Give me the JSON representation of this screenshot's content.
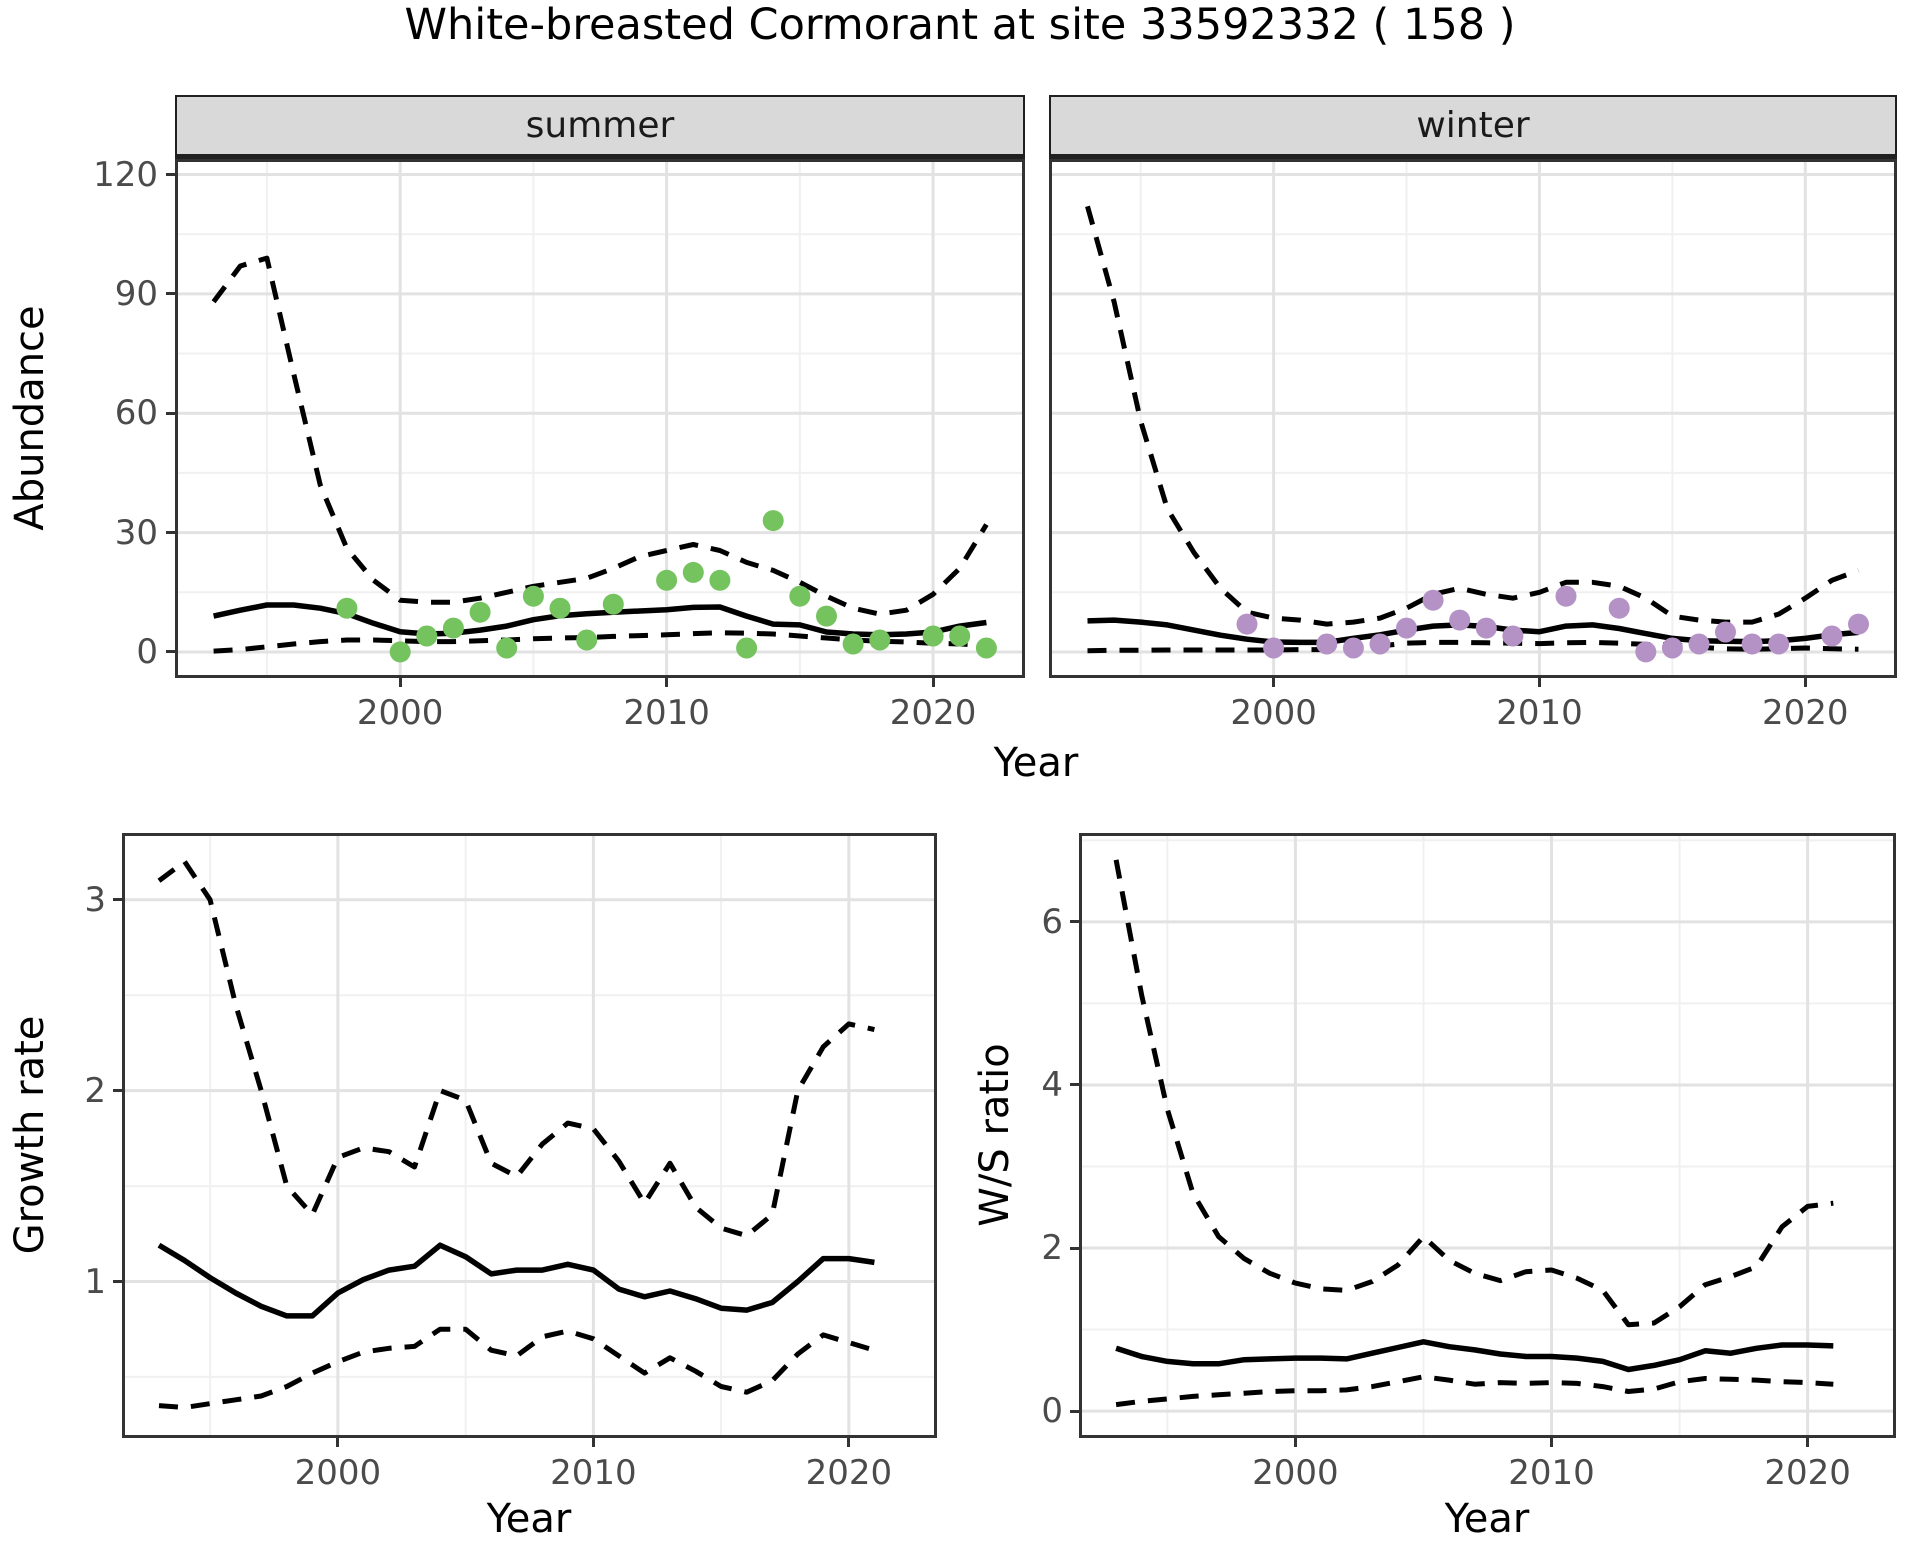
{
  "title": "White-breasted Cormorant at site 33592332 ( 158 )",
  "labels": {
    "abundance_axis": "Abundance",
    "growth_axis": "Growth rate",
    "ws_axis": "W/S ratio",
    "year_axis": "Year",
    "facet_summer": "summer",
    "facet_winter": "winter"
  },
  "colors": {
    "summer_point": "#74c35e",
    "winter_point": "#b592c6",
    "line": "#000000",
    "strip_bg": "#d9d9d9",
    "panel_border": "#333333",
    "grid_major": "#e2e2e2",
    "grid_minor": "#f0f0f0",
    "tick_text": "#4b4b4b"
  },
  "chart_data": [
    {
      "id": "abundance_summer",
      "type": "line",
      "facet": "summer",
      "xlabel": "Year",
      "ylabel": "Abundance",
      "x_range": [
        1991.55,
        2023.45
      ],
      "y_range": [
        -6.55,
        123.9
      ],
      "x_ticks": [
        2000,
        2010,
        2020
      ],
      "x_minor": [
        1995,
        2005,
        2015
      ],
      "y_ticks": [
        0,
        30,
        60,
        90,
        120
      ],
      "y_minor": [
        15,
        45,
        75,
        105
      ],
      "years": [
        1993,
        1994,
        1995,
        1996,
        1997,
        1998,
        1999,
        2000,
        2001,
        2002,
        2003,
        2004,
        2005,
        2006,
        2007,
        2008,
        2009,
        2010,
        2011,
        2012,
        2013,
        2014,
        2015,
        2016,
        2017,
        2018,
        2019,
        2020,
        2021,
        2022
      ],
      "series": [
        {
          "name": "mean",
          "style": "solid",
          "values": [
            9,
            10.5,
            11.8,
            11.8,
            11,
            9.6,
            7.2,
            5.1,
            4.5,
            4.7,
            5.5,
            6.5,
            8.1,
            9.1,
            9.6,
            10,
            10.3,
            10.6,
            11.2,
            11.3,
            9,
            7,
            6.8,
            5,
            4.5,
            4.3,
            4.5,
            5,
            6.5,
            7.4
          ]
        },
        {
          "name": "lower_ci",
          "style": "dashed",
          "values": [
            0.2,
            0.6,
            1.3,
            2,
            2.6,
            3,
            3,
            2.8,
            2.6,
            2.6,
            2.8,
            3,
            3.3,
            3.5,
            3.6,
            3.9,
            4.1,
            4.3,
            4.6,
            4.8,
            4.7,
            4.5,
            4,
            3.5,
            3,
            2.7,
            2.5,
            2.2,
            2,
            1.7
          ]
        },
        {
          "name": "upper_ci",
          "style": "dashed",
          "values": [
            88,
            97,
            99,
            70,
            42,
            26,
            18,
            13,
            12.5,
            12.5,
            13.5,
            15,
            16.5,
            17.5,
            18.5,
            21,
            24,
            25.5,
            27,
            25.5,
            22.5,
            20.5,
            17.5,
            14,
            11,
            9.5,
            10.5,
            14.5,
            21,
            32
          ]
        }
      ],
      "points": {
        "color_key": "summer_point",
        "data": [
          [
            1998,
            11
          ],
          [
            2000,
            0
          ],
          [
            2001,
            4
          ],
          [
            2002,
            6
          ],
          [
            2003,
            10
          ],
          [
            2004,
            1
          ],
          [
            2005,
            14
          ],
          [
            2006,
            11
          ],
          [
            2007,
            3
          ],
          [
            2008,
            12
          ],
          [
            2010,
            18
          ],
          [
            2011,
            20
          ],
          [
            2012,
            18
          ],
          [
            2013,
            1
          ],
          [
            2014,
            33
          ],
          [
            2015,
            14
          ],
          [
            2016,
            9
          ],
          [
            2017,
            2
          ],
          [
            2018,
            3
          ],
          [
            2020,
            4
          ],
          [
            2021,
            4
          ],
          [
            2022,
            1
          ]
        ]
      }
    },
    {
      "id": "abundance_winter",
      "type": "line",
      "facet": "winter",
      "xlabel": "Year",
      "ylabel": "Abundance",
      "x_range": [
        1991.55,
        2023.45
      ],
      "y_range": [
        -6.55,
        123.9
      ],
      "x_ticks": [
        2000,
        2010,
        2020
      ],
      "x_minor": [
        1995,
        2005,
        2015
      ],
      "y_ticks": [
        0,
        30,
        60,
        90,
        120
      ],
      "y_minor": [
        15,
        45,
        75,
        105
      ],
      "years": [
        1993,
        1994,
        1995,
        1996,
        1997,
        1998,
        1999,
        2000,
        2001,
        2002,
        2003,
        2004,
        2005,
        2006,
        2007,
        2008,
        2009,
        2010,
        2011,
        2012,
        2013,
        2014,
        2015,
        2016,
        2017,
        2018,
        2019,
        2020,
        2021,
        2022
      ],
      "series": [
        {
          "name": "mean",
          "style": "solid",
          "values": [
            7.8,
            8,
            7.5,
            6.8,
            5.5,
            4.2,
            3.2,
            2.5,
            2.4,
            2.4,
            3.4,
            4.3,
            5.5,
            6.5,
            6.8,
            6.4,
            5.5,
            5.1,
            6.5,
            6.8,
            5.9,
            4.6,
            3.4,
            2.8,
            2.7,
            2.6,
            2.8,
            3.4,
            4.3,
            4.9
          ]
        },
        {
          "name": "lower_ci",
          "style": "dashed",
          "values": [
            0.3,
            0.4,
            0.4,
            0.5,
            0.5,
            0.5,
            0.5,
            0.5,
            0.6,
            0.6,
            0.8,
            1.5,
            2.2,
            2.4,
            2.4,
            2.3,
            2.2,
            2.1,
            2.3,
            2.4,
            2.2,
            1.9,
            1.8,
            1.2,
            0.8,
            0.7,
            0.8,
            1,
            0.8,
            0.7
          ]
        },
        {
          "name": "upper_ci",
          "style": "dashed",
          "values": [
            112,
            88,
            58,
            36,
            25,
            16,
            10,
            8.5,
            8,
            7,
            7.5,
            8.5,
            11,
            14.5,
            16,
            14.5,
            13.5,
            15,
            17.5,
            17.5,
            16.5,
            13.5,
            9,
            8,
            7.5,
            7.5,
            9.5,
            13.5,
            18,
            20.5
          ]
        }
      ],
      "points": {
        "color_key": "winter_point",
        "data": [
          [
            1999,
            7
          ],
          [
            2000,
            1
          ],
          [
            2002,
            2
          ],
          [
            2003,
            1
          ],
          [
            2004,
            2
          ],
          [
            2005,
            6
          ],
          [
            2006,
            13
          ],
          [
            2007,
            8
          ],
          [
            2008,
            6
          ],
          [
            2009,
            4
          ],
          [
            2011,
            14
          ],
          [
            2013,
            11
          ],
          [
            2014,
            0
          ],
          [
            2015,
            1
          ],
          [
            2016,
            2
          ],
          [
            2017,
            5
          ],
          [
            2018,
            2
          ],
          [
            2019,
            2
          ],
          [
            2021,
            4
          ],
          [
            2022,
            7
          ]
        ]
      }
    },
    {
      "id": "growth_rate",
      "type": "line",
      "xlabel": "Year",
      "ylabel": "Growth rate",
      "x_range": [
        1991.55,
        2023.45
      ],
      "y_range": [
        0.18,
        3.35
      ],
      "x_ticks": [
        2000,
        2010,
        2020
      ],
      "x_minor": [
        1995,
        2005,
        2015
      ],
      "y_ticks": [
        1,
        2,
        3
      ],
      "y_minor": [
        0.5,
        1.5,
        2.5
      ],
      "years": [
        1993,
        1994,
        1995,
        1996,
        1997,
        1998,
        1999,
        2000,
        2001,
        2002,
        2003,
        2004,
        2005,
        2006,
        2007,
        2008,
        2009,
        2010,
        2011,
        2012,
        2013,
        2014,
        2015,
        2016,
        2017,
        2018,
        2019,
        2020,
        2021
      ],
      "series": [
        {
          "name": "mean",
          "style": "solid",
          "values": [
            1.19,
            1.11,
            1.02,
            0.94,
            0.87,
            0.82,
            0.82,
            0.94,
            1.01,
            1.06,
            1.08,
            1.19,
            1.13,
            1.04,
            1.06,
            1.06,
            1.09,
            1.06,
            0.96,
            0.92,
            0.95,
            0.91,
            0.86,
            0.85,
            0.89,
            1.0,
            1.12,
            1.12,
            1.1
          ]
        },
        {
          "name": "lower_ci",
          "style": "dashed",
          "values": [
            0.35,
            0.34,
            0.36,
            0.38,
            0.4,
            0.45,
            0.52,
            0.58,
            0.63,
            0.65,
            0.66,
            0.75,
            0.75,
            0.64,
            0.61,
            0.71,
            0.74,
            0.7,
            0.61,
            0.52,
            0.6,
            0.53,
            0.45,
            0.42,
            0.48,
            0.62,
            0.72,
            0.68,
            0.64
          ]
        },
        {
          "name": "upper_ci",
          "style": "dashed",
          "values": [
            3.1,
            3.2,
            3.0,
            2.45,
            2.0,
            1.5,
            1.35,
            1.65,
            1.7,
            1.68,
            1.6,
            2.0,
            1.95,
            1.62,
            1.55,
            1.72,
            1.83,
            1.8,
            1.63,
            1.41,
            1.62,
            1.39,
            1.28,
            1.24,
            1.35,
            2.0,
            2.23,
            2.35,
            2.32
          ]
        }
      ]
    },
    {
      "id": "ws_ratio",
      "type": "line",
      "xlabel": "Year",
      "ylabel": "W/S ratio",
      "x_range": [
        1991.55,
        2023.45
      ],
      "y_range": [
        -0.33,
        7.09
      ],
      "x_ticks": [
        2000,
        2010,
        2020
      ],
      "x_minor": [
        1995,
        2005,
        2015
      ],
      "y_ticks": [
        0,
        2,
        4,
        6
      ],
      "y_minor": [
        1,
        3,
        5,
        7
      ],
      "years": [
        1993,
        1994,
        1995,
        1996,
        1997,
        1998,
        1999,
        2000,
        2001,
        2002,
        2003,
        2004,
        2005,
        2006,
        2007,
        2008,
        2009,
        2010,
        2011,
        2012,
        2013,
        2014,
        2015,
        2016,
        2017,
        2018,
        2019,
        2020,
        2021
      ],
      "series": [
        {
          "name": "mean",
          "style": "solid",
          "values": [
            0.77,
            0.67,
            0.61,
            0.58,
            0.58,
            0.63,
            0.64,
            0.65,
            0.65,
            0.64,
            0.71,
            0.78,
            0.85,
            0.79,
            0.75,
            0.7,
            0.67,
            0.67,
            0.65,
            0.61,
            0.51,
            0.56,
            0.63,
            0.74,
            0.71,
            0.77,
            0.81,
            0.81,
            0.8
          ]
        },
        {
          "name": "lower_ci",
          "style": "dashed",
          "values": [
            0.08,
            0.12,
            0.15,
            0.18,
            0.2,
            0.22,
            0.24,
            0.25,
            0.25,
            0.26,
            0.3,
            0.36,
            0.42,
            0.38,
            0.33,
            0.35,
            0.34,
            0.35,
            0.34,
            0.3,
            0.24,
            0.27,
            0.36,
            0.4,
            0.39,
            0.38,
            0.36,
            0.35,
            0.33
          ]
        },
        {
          "name": "upper_ci",
          "style": "dashed",
          "values": [
            6.76,
            5.1,
            3.7,
            2.67,
            2.14,
            1.87,
            1.69,
            1.57,
            1.5,
            1.48,
            1.59,
            1.79,
            2.14,
            1.85,
            1.69,
            1.6,
            1.71,
            1.73,
            1.63,
            1.48,
            1.06,
            1.08,
            1.28,
            1.55,
            1.65,
            1.77,
            2.26,
            2.51,
            2.55
          ]
        }
      ]
    }
  ]
}
